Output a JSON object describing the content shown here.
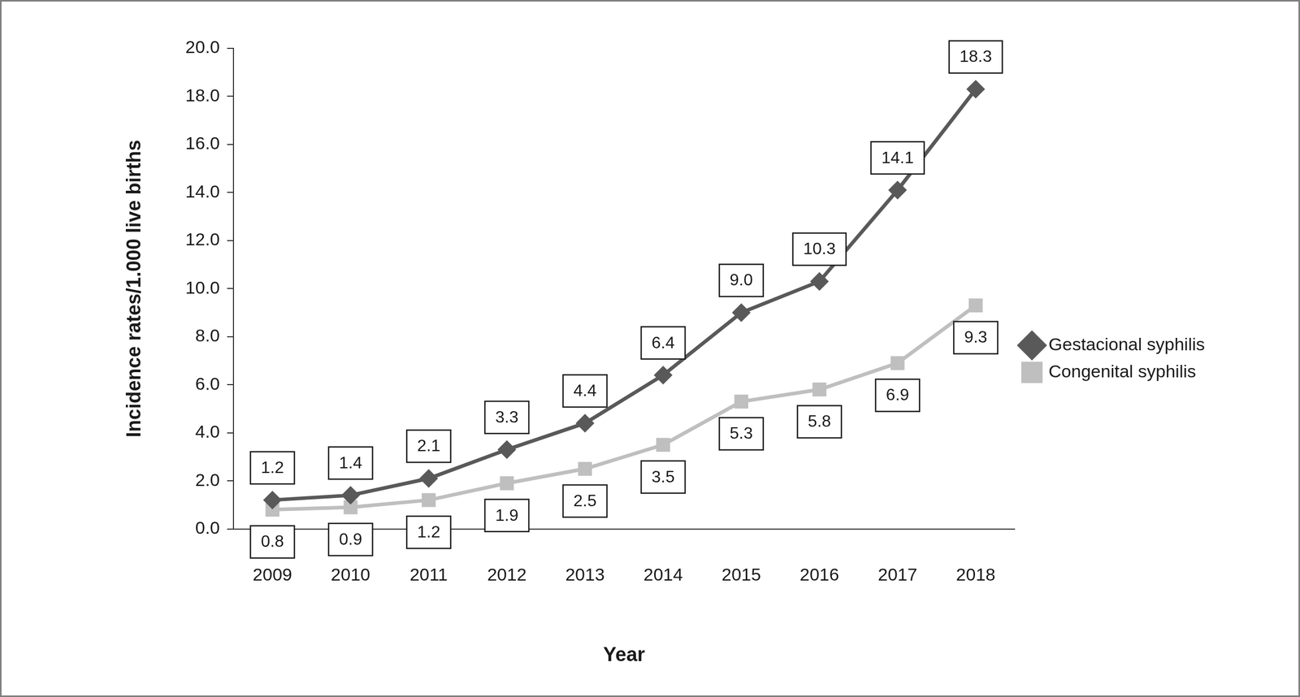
{
  "chart_data": {
    "type": "line",
    "x_label": "Year",
    "y_label": "Incidence rates/1.000 live births",
    "categories": [
      "2009",
      "2010",
      "2011",
      "2012",
      "2013",
      "2014",
      "2015",
      "2016",
      "2017",
      "2018"
    ],
    "series": [
      {
        "name": "Gestacional syphilis",
        "color": "#595959",
        "marker": "diamond",
        "values": [
          1.2,
          1.4,
          2.1,
          3.3,
          4.4,
          6.4,
          9.0,
          10.3,
          14.1,
          18.3
        ],
        "value_labels": [
          "1.2",
          "1.4",
          "2.1",
          "3.3",
          "4.4",
          "6.4",
          "9.0",
          "10.3",
          "14.1",
          "18.3"
        ]
      },
      {
        "name": "Congenital syphilis",
        "color": "#bfbfbf",
        "marker": "square",
        "values": [
          0.8,
          0.9,
          1.2,
          1.9,
          2.5,
          3.5,
          5.3,
          5.8,
          6.9,
          9.3
        ]
      }
    ],
    "ylim": [
      0,
      20
    ],
    "yticks": [
      {
        "value": 0,
        "label": "0.0"
      },
      {
        "value": 2,
        "label": "2.0"
      },
      {
        "value": 4,
        "label": "4.0"
      },
      {
        "value": 6,
        "label": "6.0"
      },
      {
        "value": 8,
        "label": "8.0"
      },
      {
        "value": 10,
        "label": "10.0"
      },
      {
        "value": 12,
        "label": "12.0"
      },
      {
        "value": 14,
        "label": "14.0"
      },
      {
        "value": 16,
        "label": "16.0"
      },
      {
        "value": 18,
        "label": "18.0"
      },
      {
        "value": 20,
        "label": "20.0"
      }
    ],
    "grid": false,
    "legend": "right",
    "data_labels": true
  }
}
